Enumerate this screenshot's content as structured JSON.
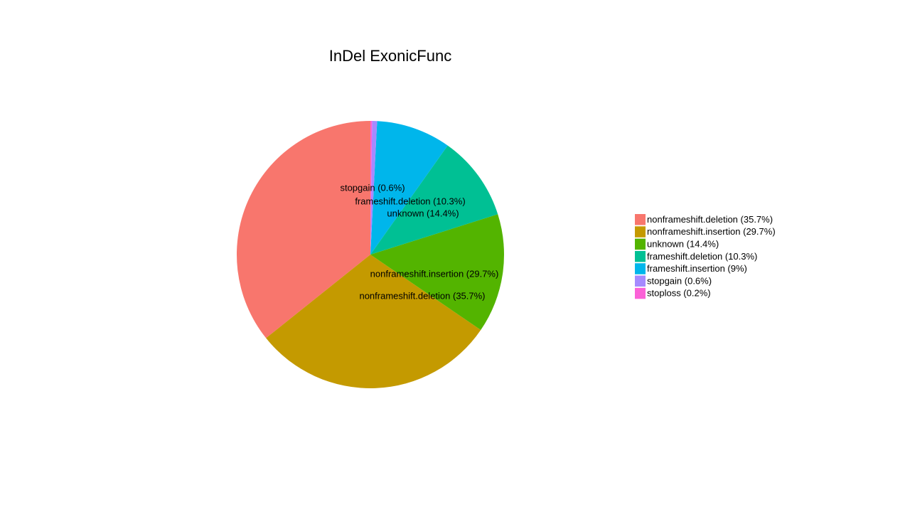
{
  "chart_data": {
    "type": "pie",
    "title": "InDel ExonicFunc",
    "legend_position": "right",
    "grid": false,
    "slices": [
      {
        "label": "nonframeshift.deletion (35.7%)",
        "value": 35.7,
        "color": "#F8766D"
      },
      {
        "label": "nonframeshift.insertion (29.7%)",
        "value": 29.7,
        "color": "#C49A00"
      },
      {
        "label": "unknown (14.4%)",
        "value": 14.4,
        "color": "#53B400"
      },
      {
        "label": "frameshift.deletion (10.3%)",
        "value": 10.3,
        "color": "#00C094"
      },
      {
        "label": "frameshift.insertion (9%)",
        "value": 9.0,
        "color": "#00B6EB"
      },
      {
        "label": "stopgain (0.6%)",
        "value": 0.6,
        "color": "#A58AFF"
      },
      {
        "label": "stoploss (0.2%)",
        "value": 0.2,
        "color": "#FB61D7"
      }
    ]
  }
}
